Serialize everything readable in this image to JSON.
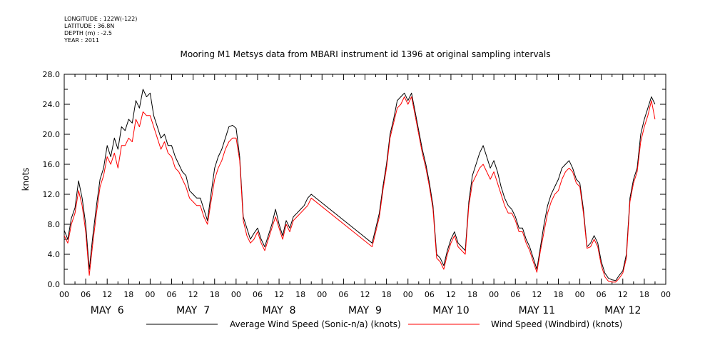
{
  "header": {
    "longitude": "LONGITUDE : 122W(-122)",
    "latitude": "LATITUDE : 36.8N",
    "depth": "DEPTH (m) : -2.5",
    "year": "YEAR : 2011"
  },
  "chart_data": {
    "type": "line",
    "title": "Mooring M1 Metsys data from MBARI instrument id 1396 at original sampling intervals",
    "ylabel": "knots",
    "xlabel": "",
    "ylim": [
      0,
      28
    ],
    "xlim": [
      0,
      168
    ],
    "x_unit": "hours since 2011-05-06 00:00",
    "yticks": [
      "0.0",
      "4.0",
      "8.0",
      "12.0",
      "16.0",
      "20.0",
      "24.0",
      "28.0"
    ],
    "xtick_labels": [
      "00",
      "06",
      "12",
      "18",
      "00",
      "06",
      "12",
      "18",
      "00",
      "06",
      "12",
      "18",
      "00",
      "06",
      "12",
      "18",
      "00",
      "06",
      "12",
      "18",
      "00",
      "06",
      "12",
      "18",
      "00",
      "06",
      "12",
      "18",
      "00"
    ],
    "day_labels": [
      "MAY  6",
      "MAY  7",
      "MAY  8",
      "MAY  9",
      "MAY 10",
      "MAY 11",
      "MAY 12"
    ],
    "grid": false,
    "legend_position": "bottom",
    "series": [
      {
        "name": "Average Wind Speed (Sonic-n/a) (knots)",
        "color": "#000000",
        "points": [
          [
            0,
            7.2
          ],
          [
            1,
            6.0
          ],
          [
            2,
            8.8
          ],
          [
            3,
            10.2
          ],
          [
            4,
            13.8
          ],
          [
            5,
            11.5
          ],
          [
            6,
            8.0
          ],
          [
            7,
            2.0
          ],
          [
            8,
            6.5
          ],
          [
            9,
            10.5
          ],
          [
            10,
            14.0
          ],
          [
            11,
            15.5
          ],
          [
            12,
            18.5
          ],
          [
            13,
            17.0
          ],
          [
            14,
            19.5
          ],
          [
            15,
            18.0
          ],
          [
            16,
            21.0
          ],
          [
            17,
            20.5
          ],
          [
            18,
            22.0
          ],
          [
            19,
            21.5
          ],
          [
            20,
            24.5
          ],
          [
            21,
            23.5
          ],
          [
            22,
            26.0
          ],
          [
            23,
            25.0
          ],
          [
            24,
            25.5
          ],
          [
            25,
            22.5
          ],
          [
            26,
            21.0
          ],
          [
            27,
            19.5
          ],
          [
            28,
            20.0
          ],
          [
            29,
            18.5
          ],
          [
            30,
            18.5
          ],
          [
            31,
            17.0
          ],
          [
            32,
            16.0
          ],
          [
            33,
            15.0
          ],
          [
            34,
            14.5
          ],
          [
            35,
            12.5
          ],
          [
            36,
            12.0
          ],
          [
            37,
            11.5
          ],
          [
            38,
            11.5
          ],
          [
            39,
            10.0
          ],
          [
            40,
            8.5
          ],
          [
            41,
            12.0
          ],
          [
            42,
            15.5
          ],
          [
            43,
            17.0
          ],
          [
            44,
            18.0
          ],
          [
            45,
            19.5
          ],
          [
            46,
            21.0
          ],
          [
            47,
            21.2
          ],
          [
            48,
            20.8
          ],
          [
            49,
            17.0
          ],
          [
            50,
            9.0
          ],
          [
            51,
            7.5
          ],
          [
            52,
            6.0
          ],
          [
            53,
            6.8
          ],
          [
            54,
            7.5
          ],
          [
            55,
            6.0
          ],
          [
            56,
            5.0
          ],
          [
            57,
            6.5
          ],
          [
            58,
            8.0
          ],
          [
            59,
            10.0
          ],
          [
            60,
            8.0
          ],
          [
            61,
            6.5
          ],
          [
            62,
            8.5
          ],
          [
            63,
            7.5
          ],
          [
            64,
            9.0
          ],
          [
            65,
            9.5
          ],
          [
            66,
            10.0
          ],
          [
            67,
            10.5
          ],
          [
            68,
            11.5
          ],
          [
            69,
            12.0
          ],
          [
            86,
            5.5
          ],
          [
            87,
            7.5
          ],
          [
            88,
            9.5
          ],
          [
            89,
            13.0
          ],
          [
            90,
            16.0
          ],
          [
            91,
            20.0
          ],
          [
            92,
            22.0
          ],
          [
            93,
            24.5
          ],
          [
            94,
            25.0
          ],
          [
            95,
            25.5
          ],
          [
            96,
            24.5
          ],
          [
            97,
            25.5
          ],
          [
            98,
            23.0
          ],
          [
            99,
            20.5
          ],
          [
            100,
            18.0
          ],
          [
            101,
            16.0
          ],
          [
            102,
            13.5
          ],
          [
            103,
            10.5
          ],
          [
            104,
            4.0
          ],
          [
            105,
            3.5
          ],
          [
            106,
            2.5
          ],
          [
            107,
            4.5
          ],
          [
            108,
            6.0
          ],
          [
            109,
            7.0
          ],
          [
            110,
            5.5
          ],
          [
            111,
            5.0
          ],
          [
            112,
            4.5
          ],
          [
            113,
            11.0
          ],
          [
            114,
            14.5
          ],
          [
            115,
            16.0
          ],
          [
            116,
            17.5
          ],
          [
            117,
            18.5
          ],
          [
            118,
            17.0
          ],
          [
            119,
            15.5
          ],
          [
            120,
            16.5
          ],
          [
            121,
            15.0
          ],
          [
            122,
            13.0
          ],
          [
            123,
            11.5
          ],
          [
            124,
            10.5
          ],
          [
            125,
            10.0
          ],
          [
            126,
            9.0
          ],
          [
            127,
            7.5
          ],
          [
            128,
            7.5
          ],
          [
            129,
            6.0
          ],
          [
            130,
            5.0
          ],
          [
            131,
            3.5
          ],
          [
            132,
            2.0
          ],
          [
            133,
            5.0
          ],
          [
            134,
            8.0
          ],
          [
            135,
            10.5
          ],
          [
            136,
            12.0
          ],
          [
            137,
            13.0
          ],
          [
            138,
            14.0
          ],
          [
            139,
            15.5
          ],
          [
            140,
            16.0
          ],
          [
            141,
            16.5
          ],
          [
            142,
            15.5
          ],
          [
            143,
            14.0
          ],
          [
            144,
            13.5
          ],
          [
            145,
            10.0
          ],
          [
            146,
            5.0
          ],
          [
            147,
            5.5
          ],
          [
            148,
            6.5
          ],
          [
            149,
            5.5
          ],
          [
            150,
            3.0
          ],
          [
            151,
            1.5
          ],
          [
            152,
            0.8
          ],
          [
            153,
            0.6
          ],
          [
            154,
            0.5
          ],
          [
            155,
            1.2
          ],
          [
            156,
            1.8
          ],
          [
            157,
            4.0
          ],
          [
            158,
            11.5
          ],
          [
            159,
            14.0
          ],
          [
            160,
            15.5
          ],
          [
            161,
            20.0
          ],
          [
            162,
            22.0
          ],
          [
            163,
            23.5
          ],
          [
            164,
            25.0
          ],
          [
            165,
            24.0
          ]
        ]
      },
      {
        "name": "Wind Speed (Windbird) (knots)",
        "color": "#ff0000",
        "points": [
          [
            0,
            6.5
          ],
          [
            1,
            5.5
          ],
          [
            2,
            8.0
          ],
          [
            3,
            9.5
          ],
          [
            4,
            12.5
          ],
          [
            5,
            10.5
          ],
          [
            6,
            7.0
          ],
          [
            7,
            1.2
          ],
          [
            8,
            5.5
          ],
          [
            9,
            9.5
          ],
          [
            10,
            13.0
          ],
          [
            11,
            14.5
          ],
          [
            12,
            17.0
          ],
          [
            13,
            16.0
          ],
          [
            14,
            17.5
          ],
          [
            15,
            15.5
          ],
          [
            16,
            18.5
          ],
          [
            17,
            18.5
          ],
          [
            18,
            19.5
          ],
          [
            19,
            19.0
          ],
          [
            20,
            22.0
          ],
          [
            21,
            21.0
          ],
          [
            22,
            23.0
          ],
          [
            23,
            22.5
          ],
          [
            24,
            22.5
          ],
          [
            25,
            21.0
          ],
          [
            26,
            19.5
          ],
          [
            27,
            18.0
          ],
          [
            28,
            19.0
          ],
          [
            29,
            17.5
          ],
          [
            30,
            17.0
          ],
          [
            31,
            15.5
          ],
          [
            32,
            15.0
          ],
          [
            33,
            14.0
          ],
          [
            34,
            13.0
          ],
          [
            35,
            11.5
          ],
          [
            36,
            11.0
          ],
          [
            37,
            10.5
          ],
          [
            38,
            10.5
          ],
          [
            39,
            9.0
          ],
          [
            40,
            8.0
          ],
          [
            41,
            11.0
          ],
          [
            42,
            14.0
          ],
          [
            43,
            15.5
          ],
          [
            44,
            16.5
          ],
          [
            45,
            18.0
          ],
          [
            46,
            19.0
          ],
          [
            47,
            19.5
          ],
          [
            48,
            19.5
          ],
          [
            49,
            16.5
          ],
          [
            50,
            8.5
          ],
          [
            51,
            6.5
          ],
          [
            52,
            5.5
          ],
          [
            53,
            6.0
          ],
          [
            54,
            7.0
          ],
          [
            55,
            5.5
          ],
          [
            56,
            4.5
          ],
          [
            57,
            6.0
          ],
          [
            58,
            7.5
          ],
          [
            59,
            9.0
          ],
          [
            60,
            7.5
          ],
          [
            61,
            6.0
          ],
          [
            62,
            8.0
          ],
          [
            63,
            7.0
          ],
          [
            64,
            8.5
          ],
          [
            65,
            9.0
          ],
          [
            66,
            9.5
          ],
          [
            67,
            10.0
          ],
          [
            68,
            10.5
          ],
          [
            69,
            11.5
          ],
          [
            86,
            5.0
          ],
          [
            87,
            7.0
          ],
          [
            88,
            9.0
          ],
          [
            89,
            12.5
          ],
          [
            90,
            15.5
          ],
          [
            91,
            19.5
          ],
          [
            92,
            21.5
          ],
          [
            93,
            23.5
          ],
          [
            94,
            24.0
          ],
          [
            95,
            25.0
          ],
          [
            96,
            24.0
          ],
          [
            97,
            25.0
          ],
          [
            98,
            22.5
          ],
          [
            99,
            20.0
          ],
          [
            100,
            17.5
          ],
          [
            101,
            15.5
          ],
          [
            102,
            13.0
          ],
          [
            103,
            10.0
          ],
          [
            104,
            3.5
          ],
          [
            105,
            3.0
          ],
          [
            106,
            2.0
          ],
          [
            107,
            4.0
          ],
          [
            108,
            5.5
          ],
          [
            109,
            6.5
          ],
          [
            110,
            5.0
          ],
          [
            111,
            4.5
          ],
          [
            112,
            4.0
          ],
          [
            113,
            10.5
          ],
          [
            114,
            13.5
          ],
          [
            115,
            14.5
          ],
          [
            116,
            15.5
          ],
          [
            117,
            16.0
          ],
          [
            118,
            15.0
          ],
          [
            119,
            14.0
          ],
          [
            120,
            15.0
          ],
          [
            121,
            13.5
          ],
          [
            122,
            12.0
          ],
          [
            123,
            10.5
          ],
          [
            124,
            9.5
          ],
          [
            125,
            9.5
          ],
          [
            126,
            8.5
          ],
          [
            127,
            7.0
          ],
          [
            128,
            7.0
          ],
          [
            129,
            5.5
          ],
          [
            130,
            4.5
          ],
          [
            131,
            3.0
          ],
          [
            132,
            1.6
          ],
          [
            133,
            4.5
          ],
          [
            134,
            7.0
          ],
          [
            135,
            9.5
          ],
          [
            136,
            11.0
          ],
          [
            137,
            12.0
          ],
          [
            138,
            12.5
          ],
          [
            139,
            14.0
          ],
          [
            140,
            15.0
          ],
          [
            141,
            15.5
          ],
          [
            142,
            15.0
          ],
          [
            143,
            13.5
          ],
          [
            144,
            13.0
          ],
          [
            145,
            9.5
          ],
          [
            146,
            4.8
          ],
          [
            147,
            5.0
          ],
          [
            148,
            6.0
          ],
          [
            149,
            5.0
          ],
          [
            150,
            2.5
          ],
          [
            151,
            1.0
          ],
          [
            152,
            0.4
          ],
          [
            153,
            0.3
          ],
          [
            154,
            0.3
          ],
          [
            155,
            0.8
          ],
          [
            156,
            1.5
          ],
          [
            157,
            3.5
          ],
          [
            158,
            11.0
          ],
          [
            159,
            13.5
          ],
          [
            160,
            15.0
          ],
          [
            161,
            19.0
          ],
          [
            162,
            21.0
          ],
          [
            163,
            22.5
          ],
          [
            164,
            24.5
          ],
          [
            165,
            22.0
          ]
        ]
      }
    ]
  }
}
